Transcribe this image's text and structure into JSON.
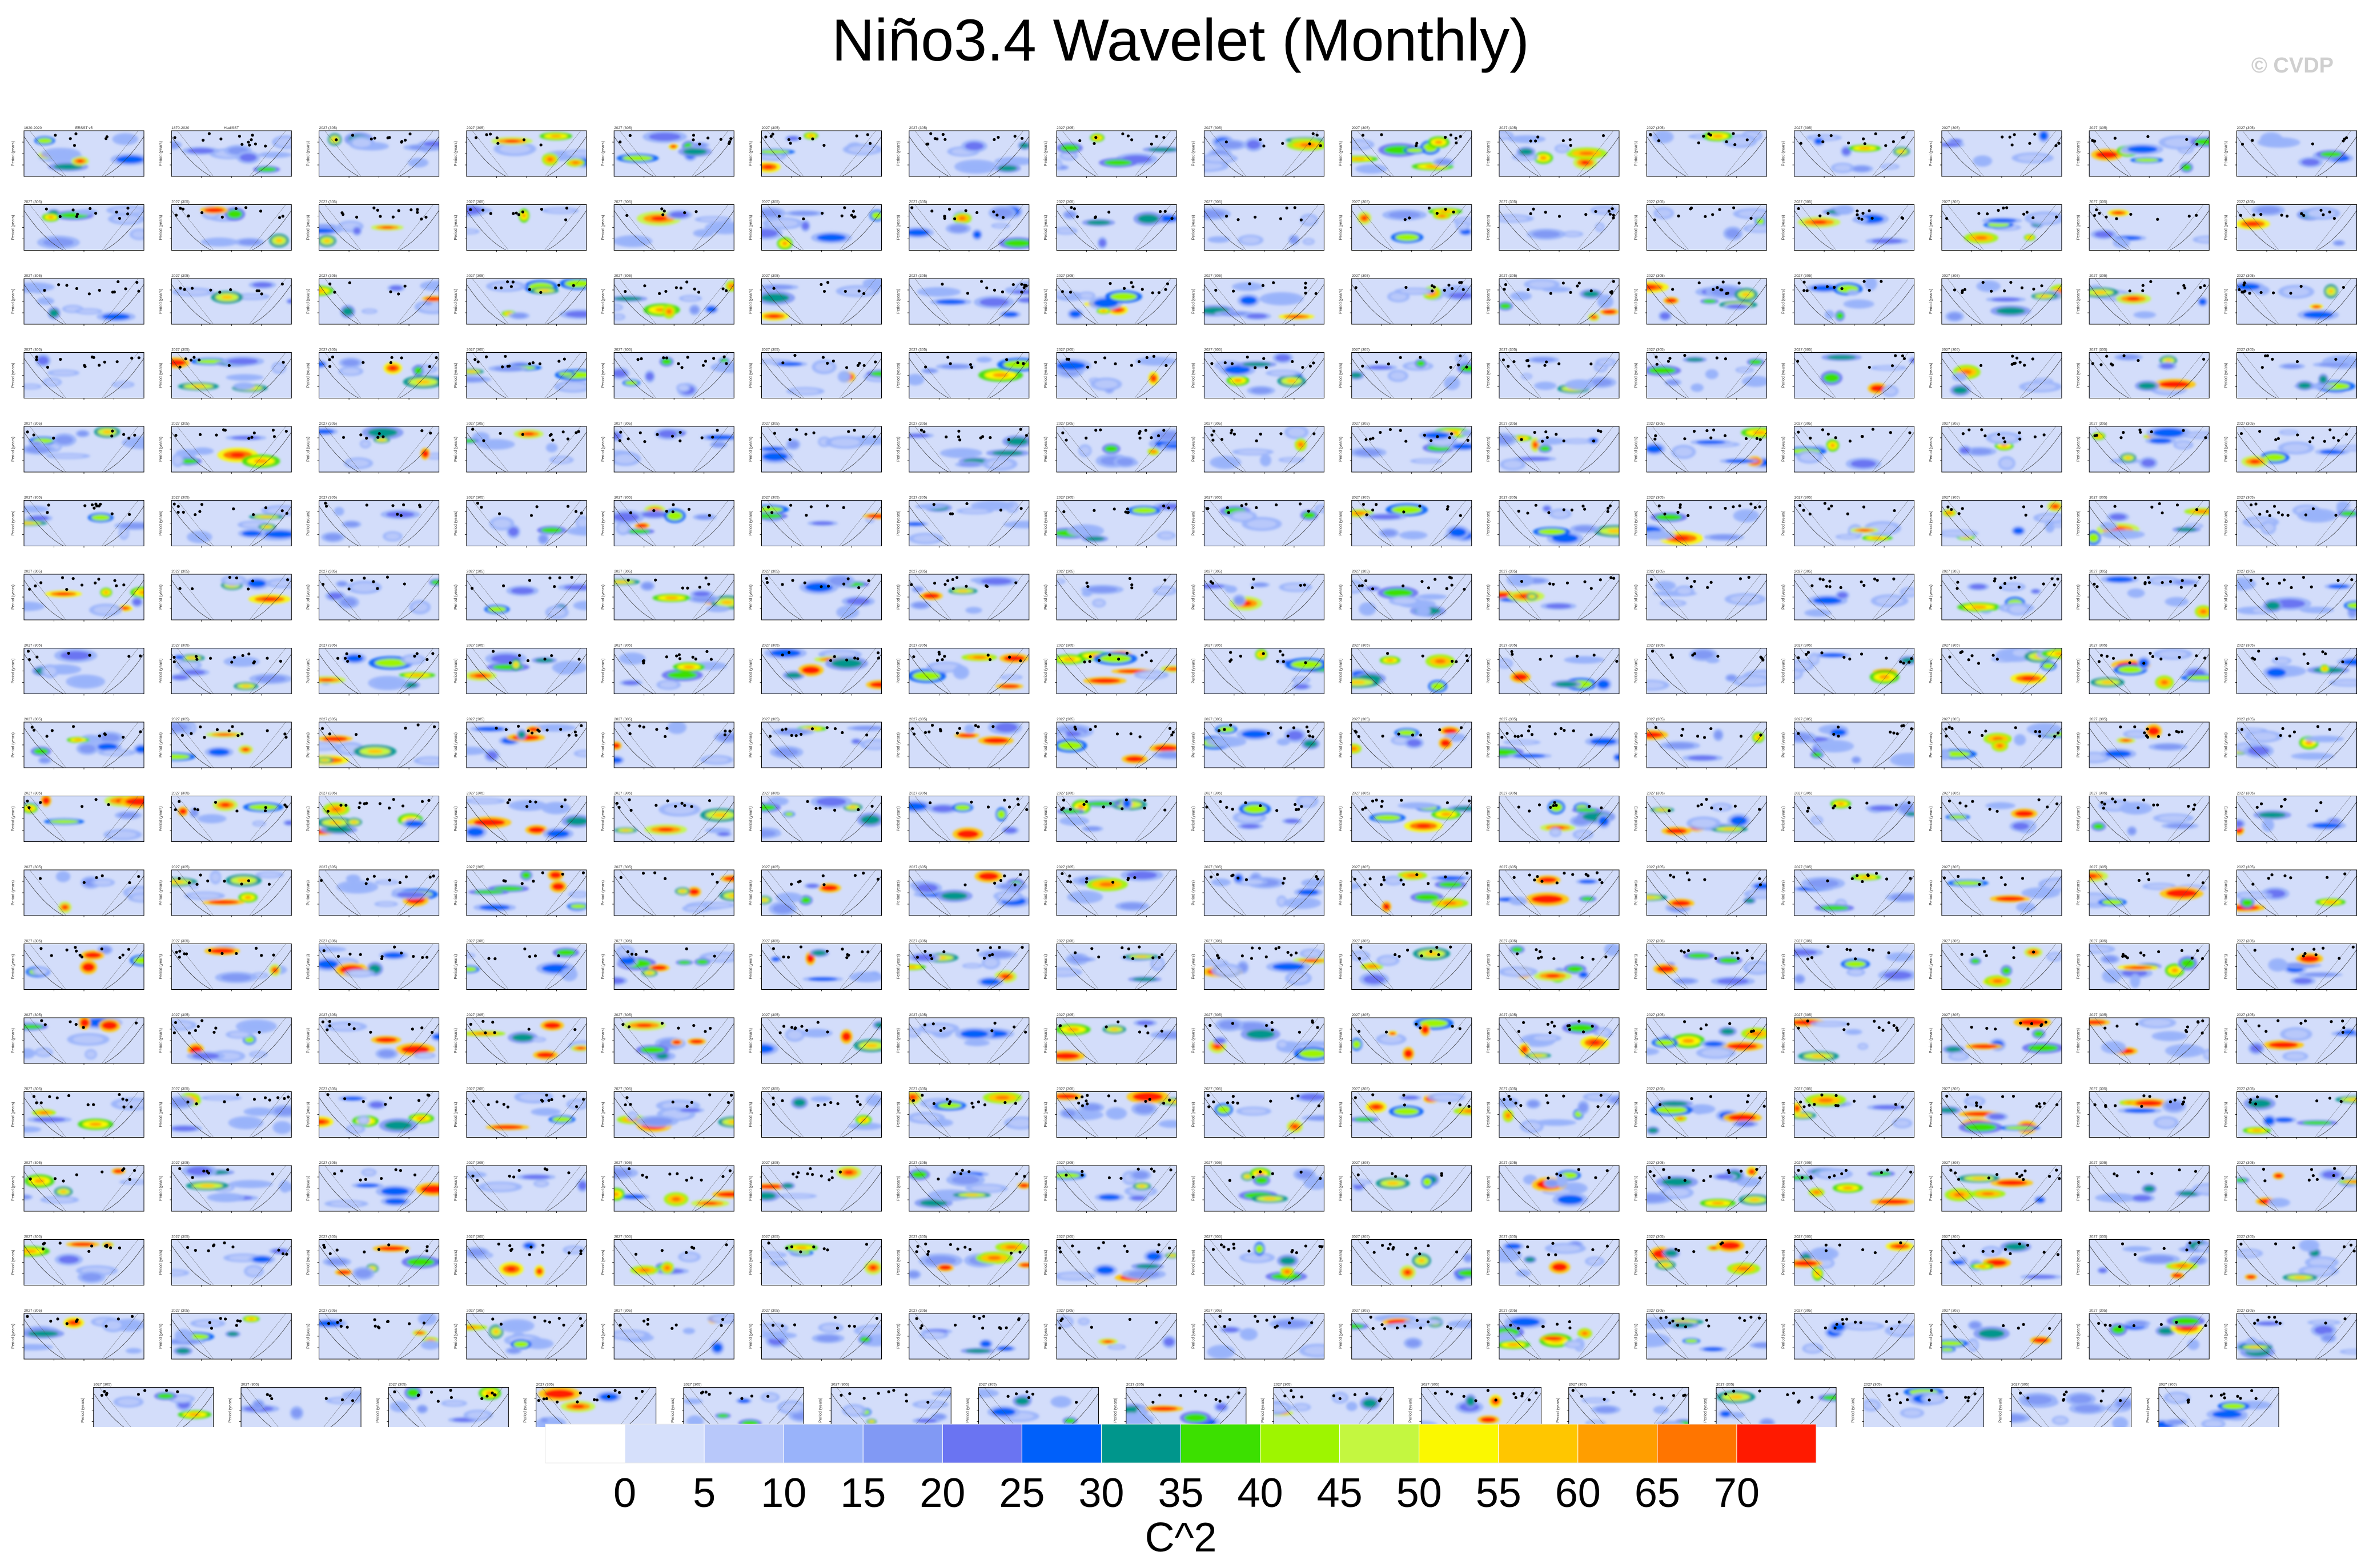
{
  "page": {
    "title": "Niño3.4 Wavelet (Monthly)",
    "credit": "© CVDP"
  },
  "chart_data": {
    "type": "heatmap",
    "title": "Niño3.4 Wavelet (Monthly)",
    "panel_ylabel": "Period (years)",
    "panel_grid": {
      "full_rows": 17,
      "columns": 16,
      "last_row_count": 15,
      "total_panels": 287
    },
    "reference_panels": [
      {
        "period": "1920-2020",
        "source": "ERSST v5"
      },
      {
        "period": "1870-2020",
        "source": "HadISST"
      }
    ],
    "model_panel_period": "2027 (305)",
    "colorbar": {
      "label": "C^2",
      "tick_labels": [
        "0",
        "5",
        "10",
        "15",
        "20",
        "25",
        "30",
        "35",
        "40",
        "45",
        "50",
        "55",
        "60",
        "65",
        "70"
      ],
      "levels": [
        0,
        5,
        10,
        15,
        20,
        25,
        30,
        35,
        40,
        45,
        50,
        55,
        60,
        65,
        70
      ],
      "colors": [
        "#ffffff",
        "#d6e0fb",
        "#b8c8fa",
        "#99b3fa",
        "#8199f4",
        "#6a74f2",
        "#0060fa",
        "#00968c",
        "#3ce000",
        "#9ef500",
        "#c4f740",
        "#fbf800",
        "#ffc600",
        "#ff9e00",
        "#ff7500",
        "#ff1a00"
      ]
    }
  }
}
